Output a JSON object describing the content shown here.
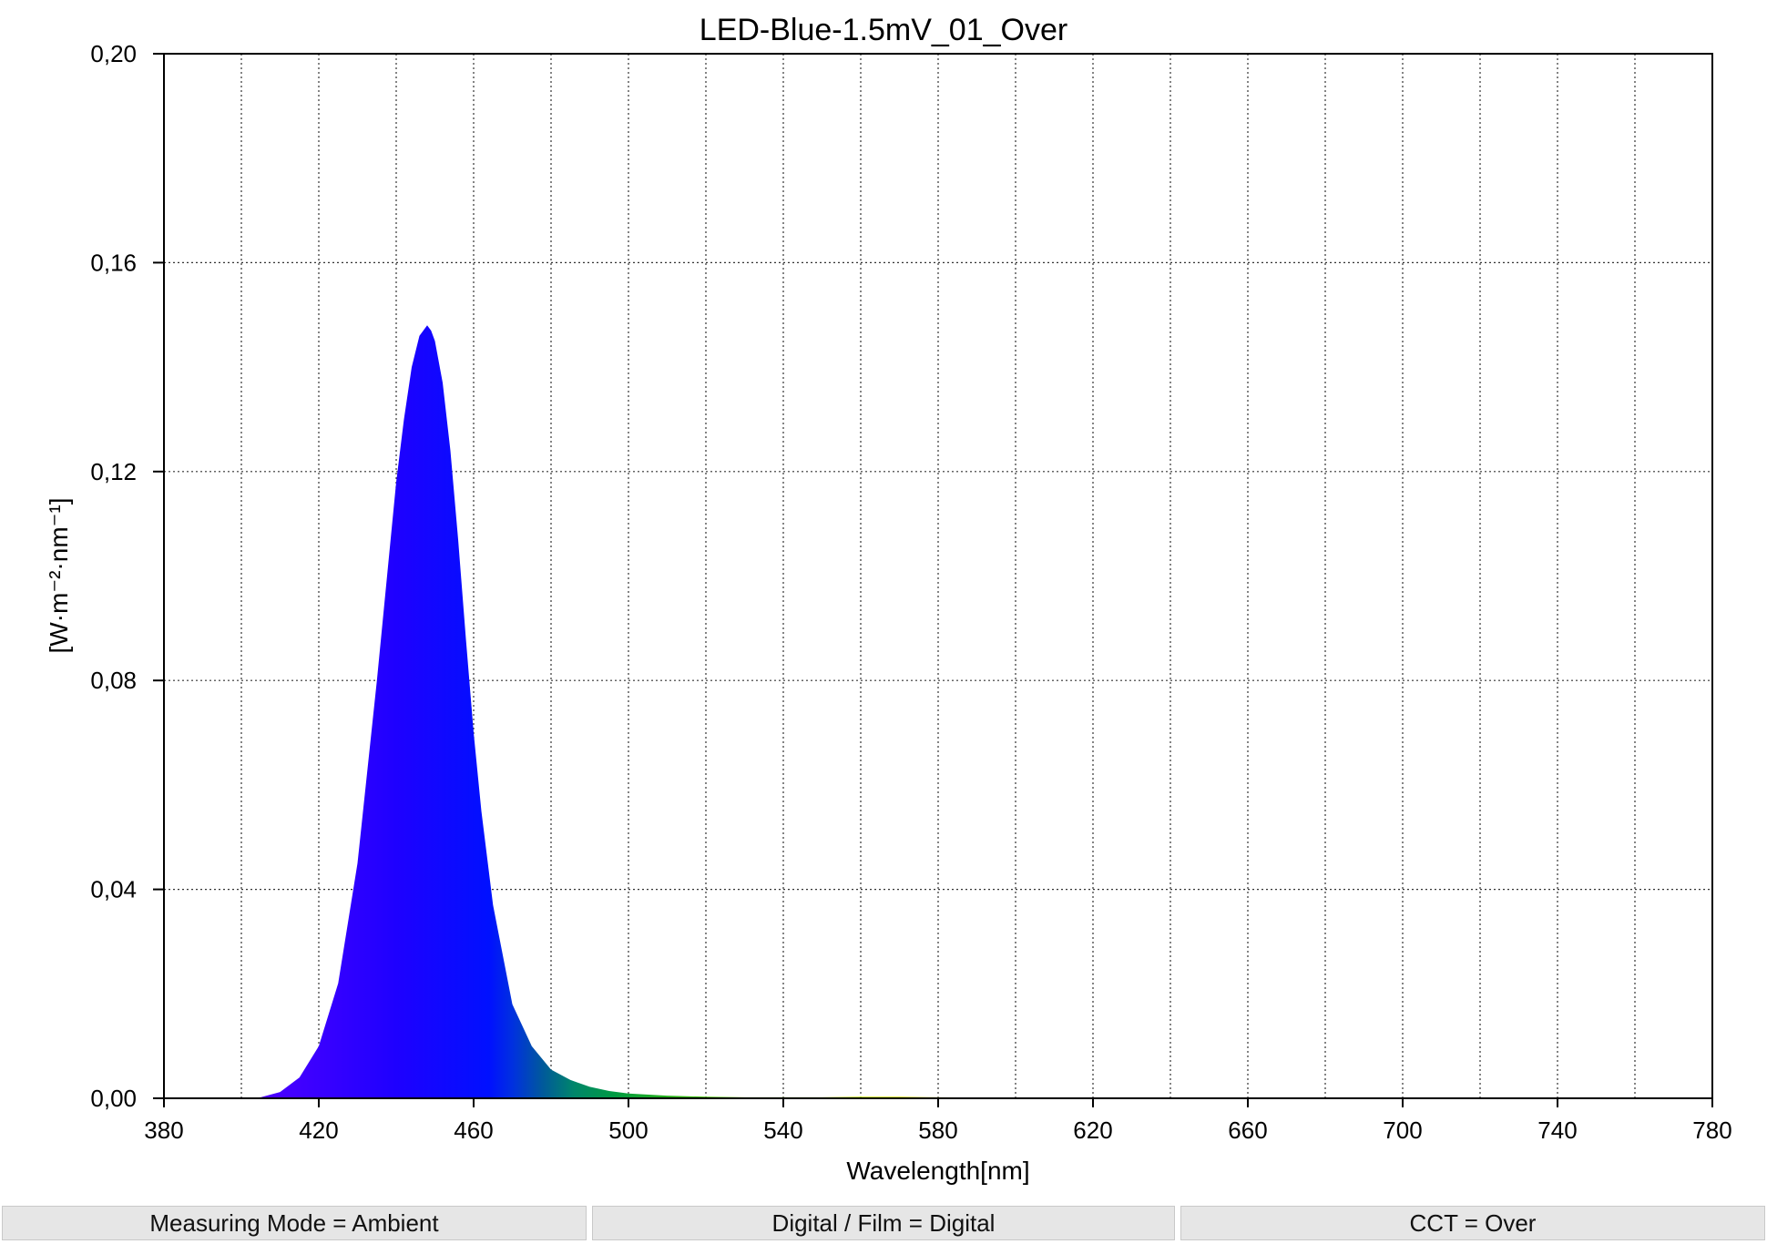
{
  "chart_data": {
    "type": "area",
    "title": "LED-Blue-1.5mV_01_Over",
    "xlabel": "Wavelength[nm]",
    "ylabel": "[W·m⁻²·nm⁻¹]",
    "xlim": [
      380,
      780
    ],
    "ylim": [
      0,
      0.2
    ],
    "x_ticks": [
      "380",
      "420",
      "460",
      "500",
      "540",
      "580",
      "620",
      "660",
      "700",
      "740",
      "780"
    ],
    "y_ticks": [
      "0,00",
      "0,04",
      "0,08",
      "0,12",
      "0,16",
      "0,20"
    ],
    "grid": true,
    "fill": "spectral-gradient",
    "series": [
      {
        "x": [
          400,
          405,
          410,
          415,
          420,
          425,
          430,
          435,
          440,
          442,
          444,
          446,
          448,
          449,
          450,
          452,
          454,
          456,
          458,
          460,
          462,
          465,
          470,
          475,
          480,
          485,
          490,
          495,
          500,
          510,
          520,
          530,
          540,
          550,
          560,
          570,
          580,
          600,
          650,
          700,
          750,
          780
        ],
        "y": [
          0.0,
          0.0002,
          0.0012,
          0.004,
          0.01,
          0.022,
          0.045,
          0.08,
          0.118,
          0.13,
          0.14,
          0.146,
          0.148,
          0.147,
          0.145,
          0.137,
          0.124,
          0.107,
          0.088,
          0.07,
          0.055,
          0.037,
          0.018,
          0.01,
          0.0055,
          0.0035,
          0.0022,
          0.0014,
          0.0009,
          0.0005,
          0.0003,
          0.0002,
          0.0002,
          0.0002,
          0.0003,
          0.0003,
          0.0002,
          0.0001,
          0.0,
          0.0,
          0.0,
          0.0
        ]
      }
    ]
  },
  "status": {
    "measuring_mode": "Measuring Mode = Ambient",
    "digital_film": "Digital / Film = Digital",
    "cct": "CCT = Over"
  }
}
